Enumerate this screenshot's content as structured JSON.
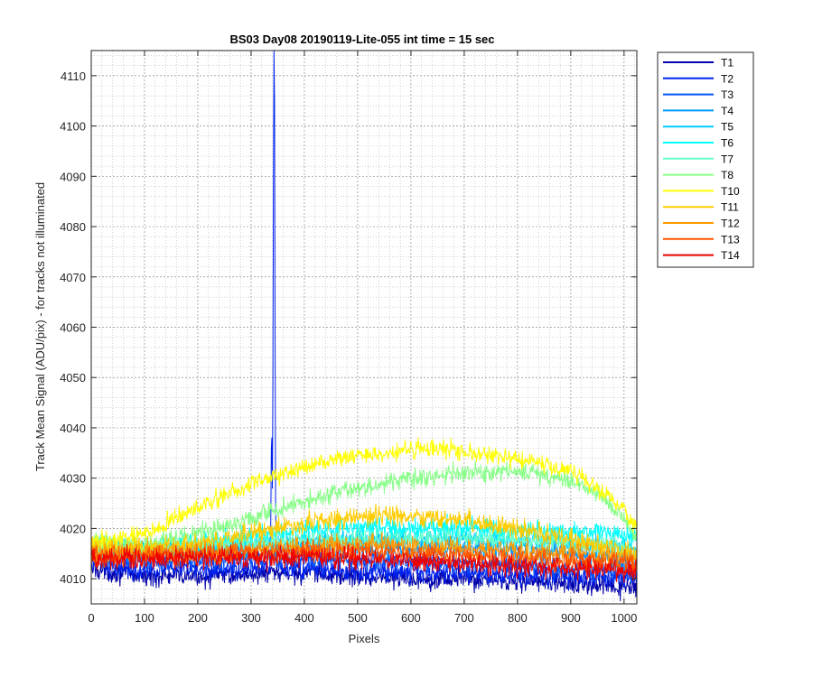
{
  "chart_data": {
    "type": "line",
    "title": "BS03 Day08 20190119-Lite-055 int time = 15 sec",
    "xlabel": "Pixels",
    "ylabel": "Track Mean Signal (ADU/pix) - for tracks not illuminated",
    "xlim": [
      0,
      1024
    ],
    "ylim": [
      4005,
      4115
    ],
    "xticks": [
      0,
      100,
      200,
      300,
      400,
      500,
      600,
      700,
      800,
      900,
      1000
    ],
    "yticks": [
      4010,
      4020,
      4030,
      4040,
      4050,
      4060,
      4070,
      4080,
      4090,
      4100,
      4110
    ],
    "grid": "major and minor, dotted",
    "legend_location": "outside-top-right",
    "series": [
      {
        "name": "T1",
        "color": "#0000AA",
        "noise": 1.5,
        "x": [
          0,
          100,
          200,
          300,
          400,
          500,
          600,
          700,
          800,
          900,
          1024
        ],
        "y": [
          4012,
          4010.5,
          4010.5,
          4011,
          4011,
          4010.5,
          4010,
          4010,
          4009.5,
          4009,
          4008
        ]
      },
      {
        "name": "T2",
        "color": "#0022EE",
        "noise": 1.5,
        "x": [
          0,
          100,
          200,
          300,
          400,
          500,
          600,
          700,
          800,
          900,
          1024
        ],
        "y": [
          4013,
          4012,
          4012,
          4012,
          4012,
          4011.5,
          4011.5,
          4011,
          4011,
          4010.5,
          4010
        ],
        "spike": {
          "x": [
            336,
            337,
            338,
            339,
            340,
            341,
            342,
            343,
            344,
            345,
            346,
            347
          ],
          "y": [
            4014,
            4022,
            4036,
            4038,
            4028,
            4050,
            4090,
            4115,
            4105,
            4060,
            4025,
            4014
          ]
        }
      },
      {
        "name": "T3",
        "color": "#0055FF",
        "noise": 1.5,
        "x": [
          0,
          100,
          200,
          300,
          400,
          500,
          600,
          700,
          800,
          900,
          1024
        ],
        "y": [
          4014,
          4013.5,
          4013.5,
          4014,
          4014,
          4013.5,
          4013.5,
          4013,
          4012.5,
          4012,
          4011
        ]
      },
      {
        "name": "T4",
        "color": "#0099FF",
        "noise": 1.5,
        "x": [
          0,
          100,
          200,
          300,
          400,
          500,
          600,
          700,
          800,
          900,
          1024
        ],
        "y": [
          4015,
          4015,
          4015.5,
          4016,
          4016.5,
          4016.5,
          4016,
          4016,
          4015.5,
          4015,
          4013
        ]
      },
      {
        "name": "T5",
        "color": "#00CCFF",
        "noise": 1.5,
        "x": [
          0,
          100,
          200,
          300,
          400,
          500,
          600,
          700,
          800,
          900,
          1024
        ],
        "y": [
          4016,
          4016,
          4016.5,
          4017,
          4017.5,
          4018,
          4018,
          4018,
          4017.5,
          4017,
          4016
        ]
      },
      {
        "name": "T6",
        "color": "#00FFFF",
        "noise": 1.5,
        "x": [
          0,
          100,
          200,
          300,
          400,
          500,
          600,
          700,
          800,
          900,
          950,
          1024
        ],
        "y": [
          4016,
          4016,
          4017,
          4018.5,
          4019.5,
          4020,
          4020,
          4020,
          4019.5,
          4019,
          4019.5,
          4018
        ]
      },
      {
        "name": "T7",
        "color": "#66FFCC",
        "noise": 1.5,
        "x": [
          0,
          100,
          200,
          300,
          400,
          500,
          600,
          700,
          800,
          900,
          1024
        ],
        "y": [
          4016,
          4016,
          4016.5,
          4017,
          4017.5,
          4018,
          4018,
          4018,
          4017.5,
          4017,
          4015.5
        ]
      },
      {
        "name": "T8",
        "color": "#88FF88",
        "noise": 1.3,
        "x": [
          0,
          100,
          200,
          300,
          400,
          500,
          600,
          700,
          800,
          900,
          950,
          1000,
          1024
        ],
        "y": [
          4017,
          4017,
          4019,
          4022,
          4025.5,
          4028,
          4030,
          4031,
          4031.5,
          4029.5,
          4027,
          4022,
          4018
        ]
      },
      {
        "name": "T10",
        "color": "#FFFF00",
        "noise": 1.3,
        "x": [
          0,
          100,
          200,
          300,
          400,
          500,
          600,
          650,
          700,
          800,
          900,
          950,
          1000,
          1024
        ],
        "y": [
          4017,
          4019,
          4024,
          4029,
          4032,
          4034.5,
          4035.5,
          4036,
          4035,
          4034,
          4031.5,
          4028,
          4024,
          4020
        ]
      },
      {
        "name": "T11",
        "color": "#FFCC00",
        "noise": 1.5,
        "x": [
          0,
          100,
          200,
          300,
          400,
          500,
          600,
          700,
          800,
          900,
          1024
        ],
        "y": [
          4016,
          4016,
          4017,
          4019,
          4021,
          4022.5,
          4022.5,
          4021.5,
          4020,
          4018,
          4015
        ]
      },
      {
        "name": "T12",
        "color": "#FF9900",
        "noise": 1.5,
        "x": [
          0,
          100,
          200,
          300,
          400,
          500,
          600,
          700,
          800,
          900,
          1024
        ],
        "y": [
          4015,
          4015,
          4015.5,
          4016,
          4016.5,
          4017,
          4016.5,
          4016,
          4015.5,
          4015,
          4014
        ]
      },
      {
        "name": "T13",
        "color": "#FF5500",
        "noise": 1.5,
        "x": [
          0,
          100,
          200,
          300,
          400,
          500,
          600,
          700,
          800,
          900,
          1024
        ],
        "y": [
          4014.5,
          4014.5,
          4015,
          4015,
          4015.5,
          4015.5,
          4015,
          4014.5,
          4014,
          4013.5,
          4013
        ]
      },
      {
        "name": "T14",
        "color": "#EE0000",
        "noise": 1.5,
        "x": [
          0,
          100,
          200,
          300,
          400,
          500,
          600,
          700,
          800,
          900,
          1024
        ],
        "y": [
          4014,
          4014,
          4014,
          4014,
          4014.5,
          4014,
          4013.5,
          4013,
          4012.5,
          4012,
          4011.5
        ]
      }
    ]
  }
}
